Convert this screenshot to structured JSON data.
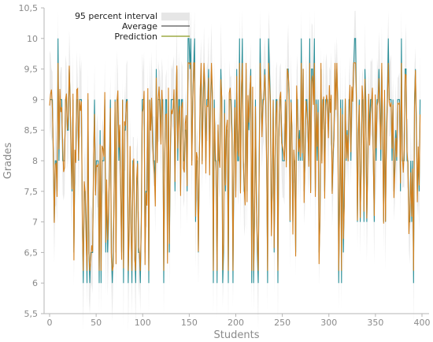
{
  "chart_data": {
    "type": "line",
    "xlabel": "Students",
    "ylabel": "Grades",
    "xlim": [
      0,
      400
    ],
    "ylim": [
      5.5,
      10.5
    ],
    "x_ticks": [
      0,
      50,
      100,
      150,
      200,
      250,
      300,
      350,
      400
    ],
    "y_ticks": [
      5.5,
      6,
      6.5,
      7,
      7.5,
      8,
      8.5,
      9,
      9.5,
      10,
      10.5
    ],
    "y_tick_labels": [
      "5,5",
      "6",
      "6,5",
      "7",
      "7,5",
      "8",
      "8,5",
      "9",
      "9,5",
      "10",
      "10,5"
    ],
    "grid": false,
    "legend": {
      "position": "top-left",
      "entries": [
        "95 percent interval",
        "Average",
        "Prediction"
      ]
    },
    "series_styles": {
      "interval": {
        "name": "95 percent interval",
        "color": "#e6e6e6"
      },
      "average": {
        "name": "Average",
        "color": "#2a8f98"
      },
      "prediction": {
        "name": "Prediction",
        "color": "#d2801e"
      }
    },
    "n_points": 397,
    "grade_levels": [
      6,
      6.5,
      7,
      7.5,
      8,
      8.5,
      9,
      9.5,
      10
    ],
    "pattern": "Per-student grades oscillate mostly between 8 and 9, with frequent dips to 6-7 (densest between students 35 and 110) and occasional peaks up to 10; prediction closely tracks the average."
  }
}
